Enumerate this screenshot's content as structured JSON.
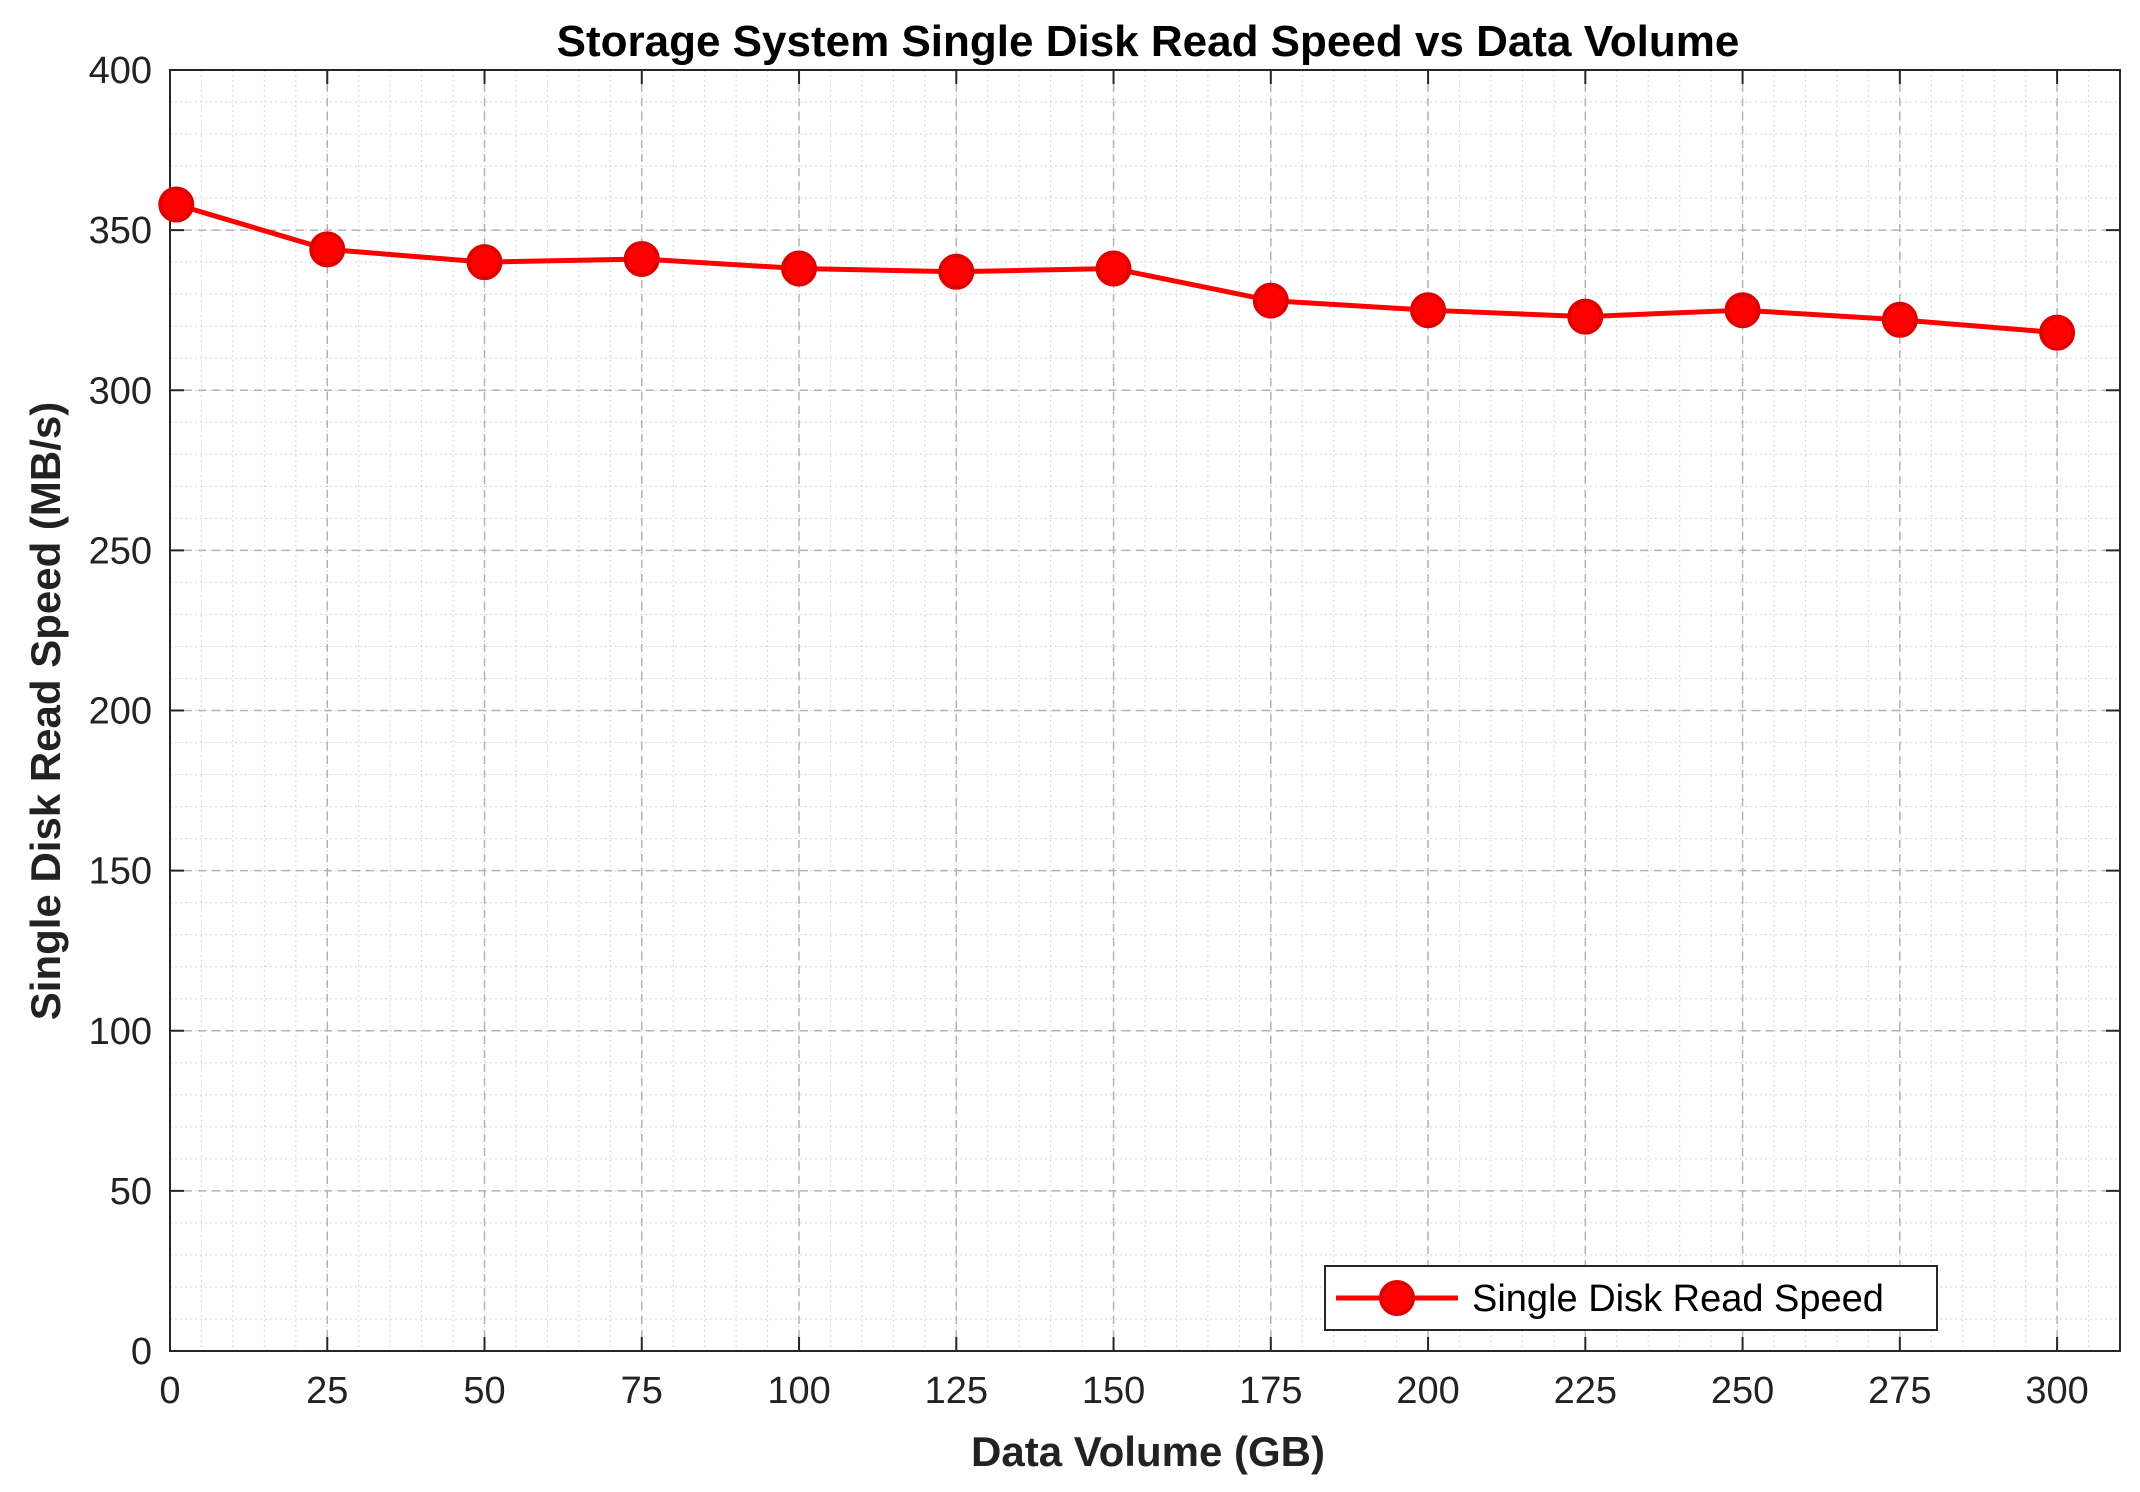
{
  "chart_data": {
    "type": "line",
    "title": "Storage System Single Disk Read Speed vs Data Volume",
    "xlabel": "Data Volume (GB)",
    "ylabel": "Single Disk Read Speed (MB/s)",
    "xlim": [
      0,
      310
    ],
    "ylim": [
      0,
      400
    ],
    "xticks": [
      0,
      25,
      50,
      75,
      100,
      125,
      150,
      175,
      200,
      225,
      250,
      275,
      300
    ],
    "yticks": [
      0,
      50,
      100,
      150,
      200,
      250,
      300,
      350,
      400
    ],
    "x_tick_labels": [
      "0",
      "25",
      "50",
      "75",
      "100",
      "125",
      "150",
      "175",
      "200",
      "225",
      "250",
      "275",
      "300"
    ],
    "y_tick_labels": [
      "0",
      "50",
      "100",
      "150",
      "200",
      "250",
      "300",
      "350",
      "400"
    ],
    "grid": true,
    "legend_position": "bottom-right",
    "series": [
      {
        "name": "Single Disk Read Speed",
        "color": "#ff0000",
        "marker": "circle",
        "x": [
          1,
          25,
          50,
          75,
          100,
          125,
          150,
          175,
          200,
          225,
          250,
          275,
          300
        ],
        "y": [
          358,
          344,
          340,
          341,
          338,
          337,
          338,
          328,
          325,
          323,
          325,
          322,
          318
        ]
      }
    ]
  }
}
